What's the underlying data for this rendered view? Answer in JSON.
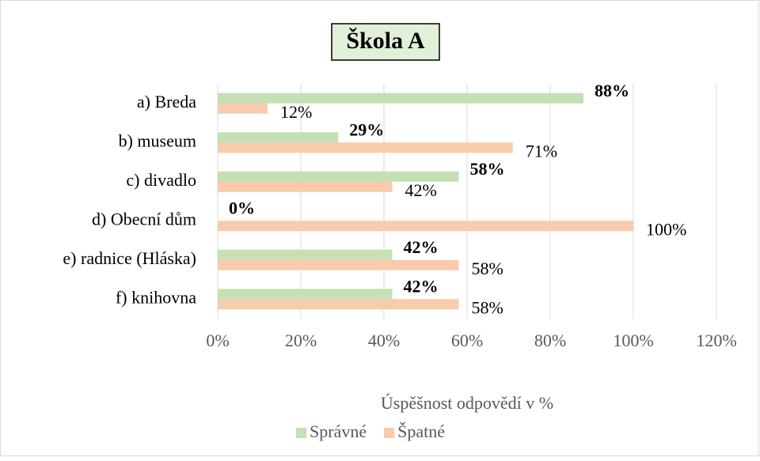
{
  "chart_data": {
    "type": "hbar",
    "title": "Škola A",
    "x_label": "Úspěšnost odpovědí v %",
    "categories": [
      "a) Breda",
      "b) museum",
      "c) divadlo",
      "d) Obecní dům",
      "e) radnice (Hláska)",
      "f) knihovna"
    ],
    "series": [
      {
        "name": "Správné",
        "color": "#c5e0b4",
        "values": [
          88,
          29,
          58,
          0,
          42,
          42
        ],
        "value_labels": [
          "88%",
          "29%",
          "58%",
          "0%",
          "42%",
          "42%"
        ]
      },
      {
        "name": "Špatné",
        "color": "#f8cbad",
        "values": [
          12,
          71,
          42,
          100,
          58,
          58
        ],
        "value_labels": [
          "12%",
          "71%",
          "42%",
          "100%",
          "58%",
          "58%"
        ]
      }
    ],
    "xlim": [
      0,
      120
    ],
    "xticks": [
      {
        "value": 0,
        "label": "0%"
      },
      {
        "value": 20,
        "label": "20%"
      },
      {
        "value": 40,
        "label": "40%"
      },
      {
        "value": 60,
        "label": "60%"
      },
      {
        "value": 80,
        "label": "80%"
      },
      {
        "value": 100,
        "label": "100%"
      },
      {
        "value": 120,
        "label": "120%"
      }
    ],
    "grid": true,
    "legend": "bottom"
  }
}
